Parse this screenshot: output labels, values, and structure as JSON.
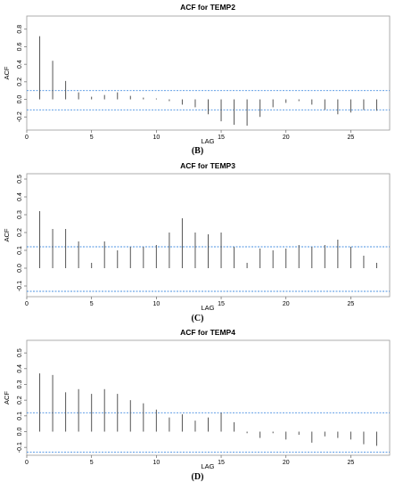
{
  "chart_data": [
    {
      "type": "bar",
      "title": "ACF for TEMP2",
      "xlabel": "LAG",
      "ylabel": "ACF",
      "caption": "(B)",
      "xlim": [
        0,
        28
      ],
      "ylim": [
        -0.35,
        0.95
      ],
      "xticks": [
        0,
        5,
        10,
        15,
        20,
        25
      ],
      "yticks": [
        -0.2,
        0.0,
        0.2,
        0.4,
        0.6,
        0.8
      ],
      "ytick_labels": [
        "-0.2",
        "0.0",
        "0.2",
        "0.4",
        "0.6",
        "0.8"
      ],
      "conf_bounds": [
        0.1,
        -0.12
      ],
      "lags": [
        1,
        2,
        3,
        4,
        5,
        6,
        7,
        8,
        9,
        10,
        11,
        12,
        13,
        14,
        15,
        16,
        17,
        18,
        19,
        20,
        21,
        22,
        23,
        24,
        25,
        26,
        27
      ],
      "values": [
        0.72,
        0.44,
        0.21,
        0.08,
        0.03,
        0.05,
        0.08,
        0.04,
        0.02,
        0.01,
        -0.02,
        -0.06,
        -0.09,
        -0.17,
        -0.25,
        -0.29,
        -0.3,
        -0.2,
        -0.09,
        -0.04,
        -0.02,
        -0.06,
        -0.12,
        -0.17,
        -0.15,
        -0.12,
        -0.13
      ],
      "colors": {
        "bars": "#555555",
        "bounds": "#4a90e2",
        "frame": "#999999"
      }
    },
    {
      "type": "bar",
      "title": "ACF for TEMP3",
      "xlabel": "LAG",
      "ylabel": "ACF",
      "caption": "(C)",
      "xlim": [
        0,
        28
      ],
      "ylim": [
        -0.16,
        0.53
      ],
      "xticks": [
        0,
        5,
        10,
        15,
        20,
        25
      ],
      "yticks": [
        -0.1,
        0.0,
        0.1,
        0.2,
        0.3,
        0.4,
        0.5
      ],
      "ytick_labels": [
        "-0.1",
        "0.0",
        "0.1",
        "0.2",
        "0.3",
        "0.4",
        "0.5"
      ],
      "conf_bounds": [
        0.12,
        -0.13
      ],
      "lags": [
        1,
        2,
        3,
        4,
        5,
        6,
        7,
        8,
        9,
        10,
        11,
        12,
        13,
        14,
        15,
        16,
        17,
        18,
        19,
        20,
        21,
        22,
        23,
        24,
        25,
        26,
        27
      ],
      "values": [
        0.32,
        0.22,
        0.22,
        0.15,
        0.03,
        0.15,
        0.1,
        0.12,
        0.12,
        0.13,
        0.2,
        0.28,
        0.2,
        0.19,
        0.2,
        0.12,
        0.03,
        0.11,
        0.1,
        0.11,
        0.13,
        0.12,
        0.13,
        0.16,
        0.12,
        0.07,
        0.03
      ],
      "colors": {
        "bars": "#555555",
        "bounds": "#4a90e2",
        "frame": "#999999"
      }
    },
    {
      "type": "bar",
      "title": "ACF for TEMP4",
      "xlabel": "LAG",
      "ylabel": "ACF",
      "caption": "(D)",
      "xlim": [
        0,
        28
      ],
      "ylim": [
        -0.15,
        0.58
      ],
      "xticks": [
        0,
        5,
        10,
        15,
        20,
        25
      ],
      "yticks": [
        -0.1,
        0.0,
        0.1,
        0.2,
        0.3,
        0.4,
        0.5
      ],
      "ytick_labels": [
        "-0.1",
        "0.0",
        "0.1",
        "0.2",
        "0.3",
        "0.4",
        "0.5"
      ],
      "conf_bounds": [
        0.12,
        -0.13
      ],
      "lags": [
        1,
        2,
        3,
        4,
        5,
        6,
        7,
        8,
        9,
        10,
        11,
        12,
        13,
        14,
        15,
        16,
        17,
        18,
        19,
        20,
        21,
        22,
        23,
        24,
        25,
        26,
        27
      ],
      "values": [
        0.37,
        0.36,
        0.25,
        0.27,
        0.24,
        0.27,
        0.24,
        0.2,
        0.18,
        0.14,
        0.09,
        0.11,
        0.07,
        0.09,
        0.12,
        0.06,
        -0.01,
        -0.04,
        -0.01,
        -0.05,
        -0.02,
        -0.07,
        -0.03,
        -0.04,
        -0.05,
        -0.08,
        -0.09
      ],
      "colors": {
        "bars": "#555555",
        "bounds": "#4a90e2",
        "frame": "#999999"
      }
    }
  ]
}
